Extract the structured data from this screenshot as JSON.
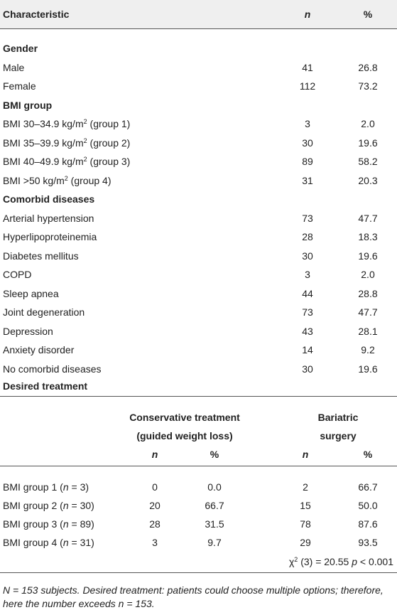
{
  "table1": {
    "header": [
      "Characteristic",
      "n",
      "%"
    ],
    "sections": [
      {
        "title": "Gender",
        "rows": [
          {
            "label": [
              {
                "text": "Male"
              }
            ],
            "n": "41",
            "pct": "26.8"
          },
          {
            "label": [
              {
                "text": "Female"
              }
            ],
            "n": "112",
            "pct": "73.2"
          }
        ]
      },
      {
        "title": "BMI group",
        "rows": [
          {
            "label": [
              {
                "text": "BMI 30–34.9 kg/m"
              },
              {
                "sup": "2"
              },
              {
                "text": " (group 1)"
              }
            ],
            "n": "3",
            "pct": "2.0"
          },
          {
            "label": [
              {
                "text": "BMI 35–39.9 kg/m"
              },
              {
                "sup": "2"
              },
              {
                "text": " (group 2)"
              }
            ],
            "n": "30",
            "pct": "19.6"
          },
          {
            "label": [
              {
                "text": "BMI 40–49.9 kg/m"
              },
              {
                "sup": "2"
              },
              {
                "text": " (group 3)"
              }
            ],
            "n": "89",
            "pct": "58.2"
          },
          {
            "label": [
              {
                "text": "BMI >50 kg/m"
              },
              {
                "sup": "2"
              },
              {
                "text": " (group 4)"
              }
            ],
            "n": "31",
            "pct": "20.3"
          }
        ]
      },
      {
        "title": "Comorbid diseases",
        "rows": [
          {
            "label": [
              {
                "text": "Arterial hypertension"
              }
            ],
            "n": "73",
            "pct": "47.7"
          },
          {
            "label": [
              {
                "text": "Hyperlipoproteinemia"
              }
            ],
            "n": "28",
            "pct": "18.3"
          },
          {
            "label": [
              {
                "text": "Diabetes mellitus"
              }
            ],
            "n": "30",
            "pct": "19.6"
          },
          {
            "label": [
              {
                "text": "COPD"
              }
            ],
            "n": "3",
            "pct": "2.0"
          },
          {
            "label": [
              {
                "text": "Sleep apnea"
              }
            ],
            "n": "44",
            "pct": "28.8"
          },
          {
            "label": [
              {
                "text": "Joint degeneration"
              }
            ],
            "n": "73",
            "pct": "47.7"
          },
          {
            "label": [
              {
                "text": "Depression"
              }
            ],
            "n": "43",
            "pct": "28.1"
          },
          {
            "label": [
              {
                "text": "Anxiety disorder"
              }
            ],
            "n": "14",
            "pct": "9.2"
          },
          {
            "label": [
              {
                "text": "No comorbid diseases"
              }
            ],
            "n": "30",
            "pct": "19.6"
          }
        ]
      }
    ],
    "final_heading": "Desired treatment"
  },
  "table2": {
    "group_headers": [
      [
        "Conservative treatment",
        "(guided weight loss)"
      ],
      [
        "Bariatric",
        "surgery"
      ]
    ],
    "subheaders": [
      "n",
      "%",
      "n",
      "%"
    ],
    "rows": [
      {
        "label": [
          {
            "text": "BMI group 1 ("
          },
          {
            "i": "n"
          },
          {
            "text": " = 3)"
          }
        ],
        "cells": [
          "0",
          "0.0",
          "2",
          "66.7"
        ]
      },
      {
        "label": [
          {
            "text": "BMI group 2 ("
          },
          {
            "i": "n"
          },
          {
            "text": " = 30)"
          }
        ],
        "cells": [
          "20",
          "66.7",
          "15",
          "50.0"
        ]
      },
      {
        "label": [
          {
            "text": "BMI group 3 ("
          },
          {
            "i": "n"
          },
          {
            "text": " = 89)"
          }
        ],
        "cells": [
          "28",
          "31.5",
          "78",
          "87.6"
        ]
      },
      {
        "label": [
          {
            "text": "BMI group 4 ("
          },
          {
            "i": "n"
          },
          {
            "text": " = 31)"
          }
        ],
        "cells": [
          "3",
          "9.7",
          "29",
          "93.5"
        ]
      }
    ],
    "statistic": [
      {
        "text": "χ"
      },
      {
        "sup": "2"
      },
      {
        "text": " (3) = 20.55 "
      },
      {
        "i": "p"
      },
      {
        "text": " < 0.001"
      }
    ]
  },
  "footnote": [
    "N = 153 subjects. Desired treatment: patients could choose multiple options; therefore,",
    "here the number exceeds n = 153."
  ]
}
